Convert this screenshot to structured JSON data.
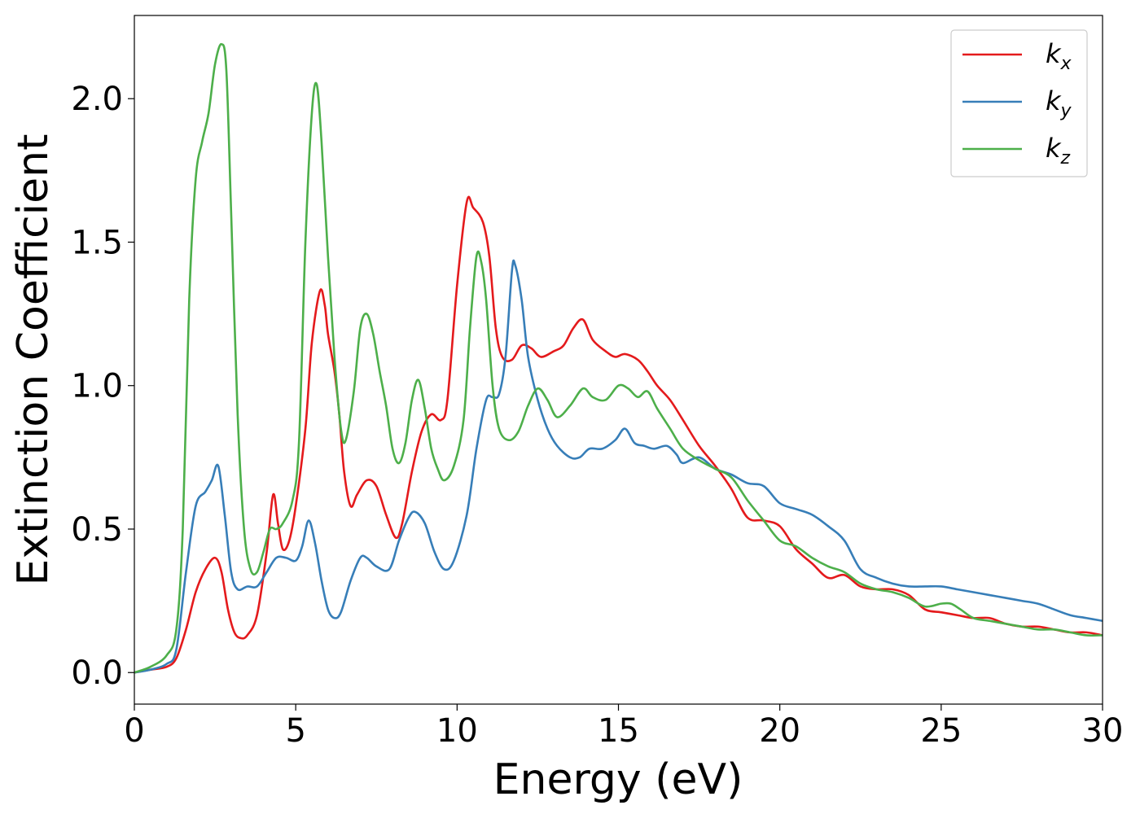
{
  "chart_data": {
    "type": "line",
    "title": "",
    "xlabel": "Energy (eV)",
    "ylabel": "Extinction Coefficient",
    "xlim": [
      0,
      30
    ],
    "ylim": [
      -0.11,
      2.29
    ],
    "xticks": [
      0,
      5,
      10,
      15,
      20,
      25,
      30
    ],
    "xtick_labels": [
      "0",
      "5",
      "10",
      "15",
      "20",
      "25",
      "30"
    ],
    "yticks": [
      0.0,
      0.5,
      1.0,
      1.5,
      2.0
    ],
    "ytick_labels": [
      "0.0",
      "0.5",
      "1.0",
      "1.5",
      "2.0"
    ],
    "grid": false,
    "legend_position": "top-right",
    "series": [
      {
        "name": "k",
        "subscript": "x",
        "color": "#e41a1c",
        "points": [
          [
            0,
            0
          ],
          [
            0.5,
            0.01
          ],
          [
            1,
            0.02
          ],
          [
            1.3,
            0.05
          ],
          [
            1.6,
            0.15
          ],
          [
            1.9,
            0.28
          ],
          [
            2.2,
            0.36
          ],
          [
            2.5,
            0.4
          ],
          [
            2.7,
            0.35
          ],
          [
            2.9,
            0.22
          ],
          [
            3.1,
            0.14
          ],
          [
            3.3,
            0.12
          ],
          [
            3.5,
            0.13
          ],
          [
            3.8,
            0.2
          ],
          [
            4.1,
            0.42
          ],
          [
            4.3,
            0.62
          ],
          [
            4.45,
            0.52
          ],
          [
            4.6,
            0.43
          ],
          [
            4.8,
            0.46
          ],
          [
            5.0,
            0.58
          ],
          [
            5.3,
            0.85
          ],
          [
            5.5,
            1.15
          ],
          [
            5.75,
            1.33
          ],
          [
            5.9,
            1.28
          ],
          [
            6.0,
            1.18
          ],
          [
            6.2,
            1.05
          ],
          [
            6.35,
            0.9
          ],
          [
            6.5,
            0.7
          ],
          [
            6.7,
            0.58
          ],
          [
            6.9,
            0.62
          ],
          [
            7.2,
            0.67
          ],
          [
            7.5,
            0.65
          ],
          [
            7.8,
            0.55
          ],
          [
            8.1,
            0.47
          ],
          [
            8.3,
            0.52
          ],
          [
            8.6,
            0.7
          ],
          [
            8.9,
            0.84
          ],
          [
            9.2,
            0.9
          ],
          [
            9.5,
            0.88
          ],
          [
            9.7,
            0.95
          ],
          [
            10.0,
            1.35
          ],
          [
            10.3,
            1.64
          ],
          [
            10.5,
            1.62
          ],
          [
            10.8,
            1.57
          ],
          [
            11.0,
            1.45
          ],
          [
            11.2,
            1.2
          ],
          [
            11.4,
            1.1
          ],
          [
            11.7,
            1.09
          ],
          [
            12.0,
            1.14
          ],
          [
            12.3,
            1.13
          ],
          [
            12.6,
            1.1
          ],
          [
            13.0,
            1.12
          ],
          [
            13.3,
            1.14
          ],
          [
            13.6,
            1.2
          ],
          [
            13.9,
            1.23
          ],
          [
            14.2,
            1.16
          ],
          [
            14.6,
            1.12
          ],
          [
            14.9,
            1.1
          ],
          [
            15.2,
            1.11
          ],
          [
            15.6,
            1.09
          ],
          [
            15.9,
            1.05
          ],
          [
            16.2,
            1.0
          ],
          [
            16.6,
            0.95
          ],
          [
            17.0,
            0.88
          ],
          [
            17.5,
            0.79
          ],
          [
            18.0,
            0.72
          ],
          [
            18.5,
            0.64
          ],
          [
            19.0,
            0.54
          ],
          [
            19.5,
            0.53
          ],
          [
            20.0,
            0.51
          ],
          [
            20.5,
            0.43
          ],
          [
            21.0,
            0.38
          ],
          [
            21.5,
            0.33
          ],
          [
            22.0,
            0.34
          ],
          [
            22.5,
            0.3
          ],
          [
            23.0,
            0.29
          ],
          [
            23.5,
            0.29
          ],
          [
            24.0,
            0.27
          ],
          [
            24.5,
            0.22
          ],
          [
            25.0,
            0.21
          ],
          [
            25.5,
            0.2
          ],
          [
            26.0,
            0.19
          ],
          [
            26.5,
            0.19
          ],
          [
            27.0,
            0.17
          ],
          [
            27.5,
            0.16
          ],
          [
            28.0,
            0.16
          ],
          [
            28.5,
            0.15
          ],
          [
            29.0,
            0.14
          ],
          [
            29.5,
            0.14
          ],
          [
            30,
            0.13
          ]
        ]
      },
      {
        "name": "k",
        "subscript": "y",
        "color": "#377eb8",
        "points": [
          [
            0,
            0
          ],
          [
            0.5,
            0.01
          ],
          [
            1,
            0.03
          ],
          [
            1.3,
            0.08
          ],
          [
            1.6,
            0.35
          ],
          [
            1.9,
            0.58
          ],
          [
            2.2,
            0.63
          ],
          [
            2.4,
            0.67
          ],
          [
            2.6,
            0.72
          ],
          [
            2.8,
            0.55
          ],
          [
            3.0,
            0.35
          ],
          [
            3.2,
            0.29
          ],
          [
            3.5,
            0.3
          ],
          [
            3.8,
            0.3
          ],
          [
            4.1,
            0.35
          ],
          [
            4.4,
            0.4
          ],
          [
            4.7,
            0.4
          ],
          [
            5.0,
            0.39
          ],
          [
            5.2,
            0.44
          ],
          [
            5.4,
            0.53
          ],
          [
            5.6,
            0.45
          ],
          [
            5.8,
            0.32
          ],
          [
            6.0,
            0.22
          ],
          [
            6.2,
            0.19
          ],
          [
            6.4,
            0.21
          ],
          [
            6.7,
            0.32
          ],
          [
            7.0,
            0.4
          ],
          [
            7.2,
            0.4
          ],
          [
            7.5,
            0.37
          ],
          [
            7.9,
            0.36
          ],
          [
            8.2,
            0.46
          ],
          [
            8.5,
            0.54
          ],
          [
            8.7,
            0.56
          ],
          [
            9.0,
            0.52
          ],
          [
            9.3,
            0.42
          ],
          [
            9.6,
            0.36
          ],
          [
            9.9,
            0.39
          ],
          [
            10.3,
            0.55
          ],
          [
            10.6,
            0.78
          ],
          [
            10.9,
            0.95
          ],
          [
            11.1,
            0.96
          ],
          [
            11.3,
            0.97
          ],
          [
            11.5,
            1.1
          ],
          [
            11.7,
            1.4
          ],
          [
            11.8,
            1.42
          ],
          [
            12.0,
            1.3
          ],
          [
            12.2,
            1.1
          ],
          [
            12.5,
            0.95
          ],
          [
            12.8,
            0.85
          ],
          [
            13.1,
            0.79
          ],
          [
            13.5,
            0.75
          ],
          [
            13.8,
            0.75
          ],
          [
            14.1,
            0.78
          ],
          [
            14.5,
            0.78
          ],
          [
            14.9,
            0.81
          ],
          [
            15.2,
            0.85
          ],
          [
            15.5,
            0.8
          ],
          [
            15.8,
            0.79
          ],
          [
            16.1,
            0.78
          ],
          [
            16.5,
            0.79
          ],
          [
            16.8,
            0.76
          ],
          [
            17.0,
            0.73
          ],
          [
            17.5,
            0.75
          ],
          [
            18.0,
            0.71
          ],
          [
            18.5,
            0.69
          ],
          [
            19.0,
            0.66
          ],
          [
            19.5,
            0.65
          ],
          [
            20.0,
            0.59
          ],
          [
            20.5,
            0.57
          ],
          [
            21.0,
            0.55
          ],
          [
            21.5,
            0.51
          ],
          [
            22.0,
            0.46
          ],
          [
            22.5,
            0.36
          ],
          [
            23.0,
            0.33
          ],
          [
            23.5,
            0.31
          ],
          [
            24.0,
            0.3
          ],
          [
            24.5,
            0.3
          ],
          [
            25.0,
            0.3
          ],
          [
            25.5,
            0.29
          ],
          [
            26.0,
            0.28
          ],
          [
            26.5,
            0.27
          ],
          [
            27.0,
            0.26
          ],
          [
            27.5,
            0.25
          ],
          [
            28.0,
            0.24
          ],
          [
            28.5,
            0.22
          ],
          [
            29.0,
            0.2
          ],
          [
            29.5,
            0.19
          ],
          [
            30,
            0.18
          ]
        ]
      },
      {
        "name": "k",
        "subscript": "z",
        "color": "#4daf4a",
        "points": [
          [
            0,
            0
          ],
          [
            0.5,
            0.02
          ],
          [
            1,
            0.06
          ],
          [
            1.3,
            0.15
          ],
          [
            1.5,
            0.5
          ],
          [
            1.7,
            1.3
          ],
          [
            1.9,
            1.72
          ],
          [
            2.1,
            1.85
          ],
          [
            2.3,
            1.95
          ],
          [
            2.5,
            2.12
          ],
          [
            2.7,
            2.19
          ],
          [
            2.85,
            2.1
          ],
          [
            3.0,
            1.6
          ],
          [
            3.2,
            0.9
          ],
          [
            3.4,
            0.5
          ],
          [
            3.6,
            0.36
          ],
          [
            3.8,
            0.35
          ],
          [
            4.0,
            0.42
          ],
          [
            4.2,
            0.5
          ],
          [
            4.4,
            0.5
          ],
          [
            4.6,
            0.52
          ],
          [
            4.9,
            0.6
          ],
          [
            5.1,
            0.8
          ],
          [
            5.3,
            1.5
          ],
          [
            5.5,
            1.95
          ],
          [
            5.65,
            2.05
          ],
          [
            5.8,
            1.85
          ],
          [
            6.0,
            1.45
          ],
          [
            6.2,
            1.1
          ],
          [
            6.4,
            0.85
          ],
          [
            6.55,
            0.81
          ],
          [
            6.8,
            0.98
          ],
          [
            7.0,
            1.2
          ],
          [
            7.2,
            1.25
          ],
          [
            7.4,
            1.18
          ],
          [
            7.6,
            1.05
          ],
          [
            7.8,
            0.93
          ],
          [
            8.0,
            0.78
          ],
          [
            8.2,
            0.73
          ],
          [
            8.4,
            0.8
          ],
          [
            8.6,
            0.95
          ],
          [
            8.8,
            1.02
          ],
          [
            9.0,
            0.92
          ],
          [
            9.2,
            0.78
          ],
          [
            9.4,
            0.71
          ],
          [
            9.6,
            0.67
          ],
          [
            9.9,
            0.72
          ],
          [
            10.2,
            0.88
          ],
          [
            10.4,
            1.2
          ],
          [
            10.6,
            1.45
          ],
          [
            10.75,
            1.43
          ],
          [
            10.9,
            1.3
          ],
          [
            11.1,
            1.0
          ],
          [
            11.3,
            0.85
          ],
          [
            11.6,
            0.81
          ],
          [
            11.9,
            0.84
          ],
          [
            12.2,
            0.93
          ],
          [
            12.5,
            0.99
          ],
          [
            12.8,
            0.95
          ],
          [
            13.1,
            0.89
          ],
          [
            13.5,
            0.93
          ],
          [
            13.9,
            0.99
          ],
          [
            14.2,
            0.96
          ],
          [
            14.6,
            0.95
          ],
          [
            15.0,
            1.0
          ],
          [
            15.3,
            0.99
          ],
          [
            15.6,
            0.96
          ],
          [
            15.9,
            0.98
          ],
          [
            16.2,
            0.92
          ],
          [
            16.6,
            0.85
          ],
          [
            17.0,
            0.78
          ],
          [
            17.5,
            0.74
          ],
          [
            18.0,
            0.71
          ],
          [
            18.5,
            0.68
          ],
          [
            19.0,
            0.6
          ],
          [
            19.5,
            0.53
          ],
          [
            20.0,
            0.46
          ],
          [
            20.5,
            0.44
          ],
          [
            21.0,
            0.4
          ],
          [
            21.5,
            0.37
          ],
          [
            22.0,
            0.35
          ],
          [
            22.5,
            0.31
          ],
          [
            23.0,
            0.29
          ],
          [
            23.5,
            0.28
          ],
          [
            24.0,
            0.26
          ],
          [
            24.5,
            0.23
          ],
          [
            25.0,
            0.24
          ],
          [
            25.3,
            0.24
          ],
          [
            25.6,
            0.22
          ],
          [
            26.0,
            0.19
          ],
          [
            26.5,
            0.18
          ],
          [
            27.0,
            0.17
          ],
          [
            27.5,
            0.16
          ],
          [
            28.0,
            0.15
          ],
          [
            28.5,
            0.15
          ],
          [
            29.0,
            0.14
          ],
          [
            29.5,
            0.13
          ],
          [
            30,
            0.13
          ]
        ]
      }
    ]
  }
}
